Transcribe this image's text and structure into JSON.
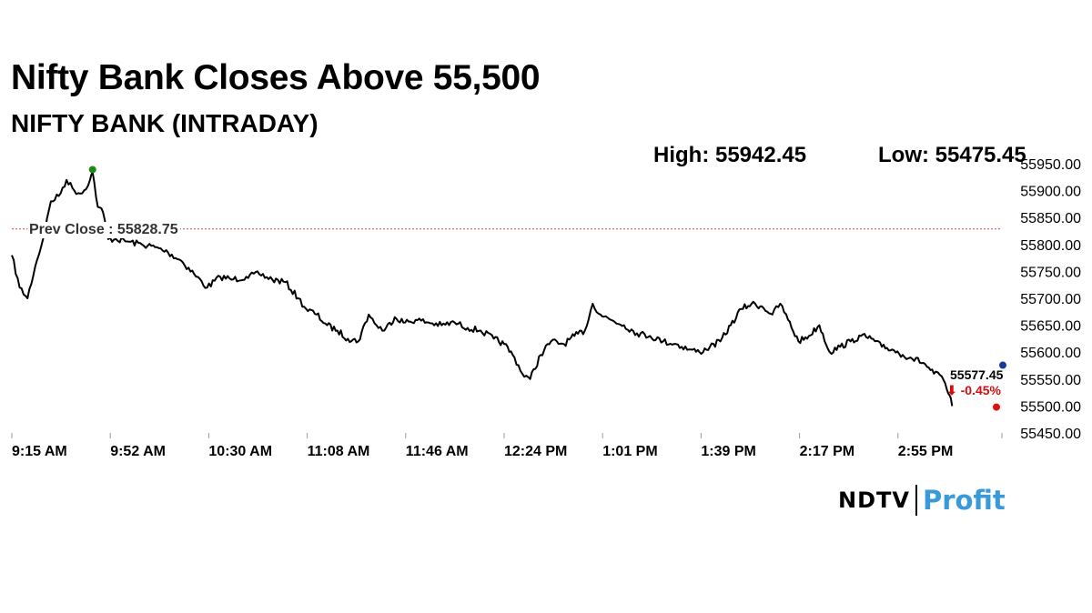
{
  "header": {
    "title": "Nifty Bank Closes Above 55,500",
    "subtitle": "NIFTY BANK (INTRADAY)",
    "high_label": "High: 55942.45",
    "low_label": "Low: 55475.45"
  },
  "annotations": {
    "prev_close_label": "Prev Close : 55828.75",
    "last_value": "55577.45",
    "change": "⬇ -0.45%"
  },
  "brand": {
    "ndtv": "NDTV",
    "profit": "Profit"
  },
  "colors": {
    "line": "#000000",
    "prev_close": "#d04040",
    "high_marker": "#1a8a1a",
    "low_marker": "#e01010",
    "last_marker": "#1a3a9a",
    "profit": "#3a9ad9",
    "change": "#d01010"
  },
  "chart_data": {
    "type": "line",
    "title": "NIFTY BANK (INTRADAY)",
    "xlabel": "",
    "ylabel": "",
    "ylim": [
      55450,
      55950
    ],
    "y_ticks": [
      "55450.00",
      "55500.00",
      "55550.00",
      "55600.00",
      "55650.00",
      "55700.00",
      "55750.00",
      "55800.00",
      "55850.00",
      "55900.00",
      "55950.00"
    ],
    "x_ticks": [
      "9:15 AM",
      "9:52 AM",
      "10:30 AM",
      "11:08 AM",
      "11:46 AM",
      "12:24 PM",
      "1:01 PM",
      "1:39 PM",
      "2:17 PM",
      "2:55 PM"
    ],
    "prev_close": 55828.75,
    "high": 55942.45,
    "low": 55475.45,
    "last": 55577.45,
    "change_pct": -0.45,
    "grid": false,
    "series": [
      {
        "points": [
          [
            "9:15",
            55780
          ],
          [
            "9:18",
            55720
          ],
          [
            "9:21",
            55700
          ],
          [
            "9:24",
            55760
          ],
          [
            "9:27",
            55810
          ],
          [
            "9:30",
            55880
          ],
          [
            "9:33",
            55890
          ],
          [
            "9:36",
            55920
          ],
          [
            "9:39",
            55900
          ],
          [
            "9:42",
            55895
          ],
          [
            "9:45",
            55920
          ],
          [
            "9:46",
            55935
          ],
          [
            "9:48",
            55870
          ],
          [
            "9:50",
            55860
          ],
          [
            "9:52",
            55810
          ],
          [
            "9:55",
            55810
          ],
          [
            "10:00",
            55805
          ],
          [
            "10:05",
            55800
          ],
          [
            "10:10",
            55795
          ],
          [
            "10:15",
            55785
          ],
          [
            "10:20",
            55770
          ],
          [
            "10:25",
            55745
          ],
          [
            "10:30",
            55720
          ],
          [
            "10:35",
            55740
          ],
          [
            "10:40",
            55735
          ],
          [
            "10:45",
            55740
          ],
          [
            "10:50",
            55745
          ],
          [
            "10:55",
            55735
          ],
          [
            "11:00",
            55730
          ],
          [
            "11:05",
            55700
          ],
          [
            "11:08",
            55680
          ],
          [
            "11:12",
            55670
          ],
          [
            "11:16",
            55650
          ],
          [
            "11:20",
            55640
          ],
          [
            "11:24",
            55625
          ],
          [
            "11:28",
            55620
          ],
          [
            "11:32",
            55670
          ],
          [
            "11:35",
            55650
          ],
          [
            "11:38",
            55640
          ],
          [
            "11:42",
            55665
          ],
          [
            "11:46",
            55655
          ],
          [
            "11:50",
            55660
          ],
          [
            "11:55",
            55655
          ],
          [
            "12:00",
            55650
          ],
          [
            "12:05",
            55655
          ],
          [
            "12:10",
            55645
          ],
          [
            "12:15",
            55640
          ],
          [
            "12:20",
            55625
          ],
          [
            "12:24",
            55615
          ],
          [
            "12:28",
            55590
          ],
          [
            "12:31",
            55560
          ],
          [
            "12:34",
            55550
          ],
          [
            "12:38",
            55595
          ],
          [
            "12:42",
            55620
          ],
          [
            "12:47",
            55615
          ],
          [
            "12:51",
            55630
          ],
          [
            "12:55",
            55640
          ],
          [
            "12:58",
            55690
          ],
          [
            "13:01",
            55670
          ],
          [
            "13:05",
            55660
          ],
          [
            "13:10",
            55650
          ],
          [
            "13:15",
            55635
          ],
          [
            "13:20",
            55630
          ],
          [
            "13:25",
            55620
          ],
          [
            "13:30",
            55615
          ],
          [
            "13:35",
            55605
          ],
          [
            "13:39",
            55600
          ],
          [
            "13:43",
            55610
          ],
          [
            "13:47",
            55620
          ],
          [
            "13:51",
            55650
          ],
          [
            "13:55",
            55680
          ],
          [
            "13:59",
            55690
          ],
          [
            "14:03",
            55685
          ],
          [
            "14:07",
            55670
          ],
          [
            "14:10",
            55690
          ],
          [
            "14:13",
            55660
          ],
          [
            "14:17",
            55620
          ],
          [
            "14:21",
            55630
          ],
          [
            "14:25",
            55650
          ],
          [
            "14:29",
            55600
          ],
          [
            "14:33",
            55610
          ],
          [
            "14:37",
            55620
          ],
          [
            "14:41",
            55630
          ],
          [
            "14:45",
            55625
          ],
          [
            "14:49",
            55610
          ],
          [
            "14:53",
            55605
          ],
          [
            "14:57",
            55595
          ],
          [
            "15:00",
            55590
          ],
          [
            "15:05",
            55580
          ],
          [
            "15:09",
            55560
          ],
          [
            "15:12",
            55555
          ],
          [
            "15:14",
            55530
          ],
          [
            "15:15",
            55520
          ],
          [
            "15:16",
            55500
          ]
        ]
      }
    ]
  }
}
